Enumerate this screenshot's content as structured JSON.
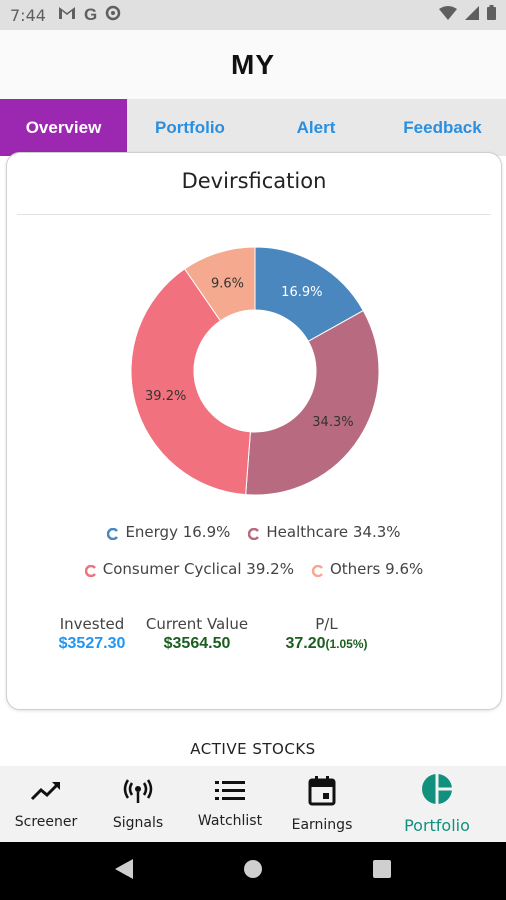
{
  "status_bar": {
    "time": "7:44",
    "icons": [
      "gmail-icon",
      "google-icon",
      "sync-icon"
    ],
    "right_icons": [
      "wifi-icon",
      "signal-icon",
      "battery-icon"
    ]
  },
  "app_bar": {
    "title": "MY"
  },
  "tabs": [
    {
      "label": "Overview",
      "active": true
    },
    {
      "label": "Portfolio",
      "active": false
    },
    {
      "label": "Alert",
      "active": false
    },
    {
      "label": "Feedback",
      "active": false
    }
  ],
  "card": {
    "title": "Devirsfication",
    "legend": [
      {
        "label": "Energy 16.9%",
        "color": "#4a87bf"
      },
      {
        "label": "Healthcare 34.3%",
        "color": "#b86b80"
      },
      {
        "label": "Consumer Cyclical 39.2%",
        "color": "#f1717e"
      },
      {
        "label": "Others 9.6%",
        "color": "#f5aa8f"
      }
    ],
    "stats": {
      "invested": {
        "label": "Invested",
        "value": "$3527.30"
      },
      "current": {
        "label": "Current Value",
        "value": "$3564.50"
      },
      "pl": {
        "label": "P/L",
        "value": "37.20",
        "pct": "(1.05%)"
      }
    }
  },
  "chart_data": {
    "type": "pie",
    "donut": true,
    "categories": [
      "Energy",
      "Healthcare",
      "Consumer Cyclical",
      "Others"
    ],
    "values": [
      16.9,
      34.3,
      39.2,
      9.6
    ],
    "labels": [
      "16.9%",
      "34.3%",
      "39.2%",
      "9.6%"
    ],
    "colors": [
      "#4a87bf",
      "#b86b80",
      "#f1717e",
      "#f5aa8f"
    ],
    "label_colors": [
      "#ffffff",
      "#333333",
      "#333333",
      "#333333"
    ],
    "legend_position": "bottom"
  },
  "section": {
    "active_stocks": "ACTIVE STOCKS"
  },
  "bottom_nav": [
    {
      "label": "Screener",
      "icon": "trending-up-icon",
      "active": false
    },
    {
      "label": "Signals",
      "icon": "broadcast-icon",
      "active": false
    },
    {
      "label": "Watchlist",
      "icon": "list-icon",
      "active": false
    },
    {
      "label": "Earnings",
      "icon": "calendar-icon",
      "active": false
    },
    {
      "label": "Portfolio",
      "icon": "pie-chart-icon",
      "active": true
    }
  ],
  "colors": {
    "accent": "#9c27b0",
    "tab_text": "#2a8fe0",
    "invested": "#2196f3",
    "profit": "#1b5e20",
    "nav_active": "#11907e"
  }
}
